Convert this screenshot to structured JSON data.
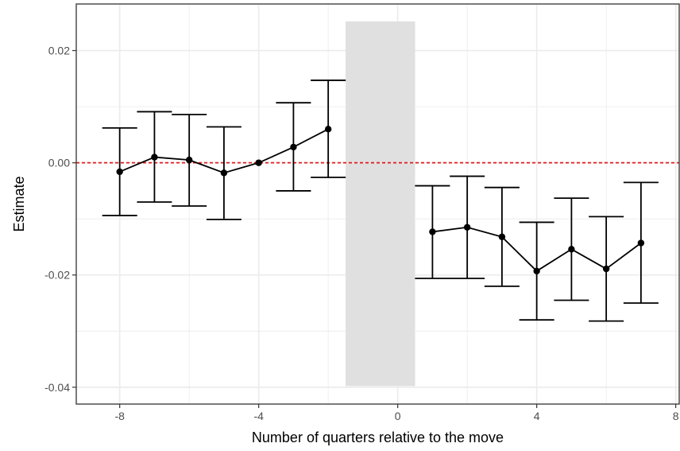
{
  "chart_data": {
    "type": "scatter",
    "xlabel": "Number of quarters relative to the move",
    "ylabel": "Estimate",
    "xlim": [
      -9.25,
      8.1
    ],
    "ylim": [
      -0.043,
      0.0283
    ],
    "x_ticks": [
      -8,
      -4,
      0,
      4,
      8
    ],
    "x_tick_labels": [
      "-8",
      "-4",
      "0",
      "4",
      "8"
    ],
    "y_ticks": [
      -0.04,
      -0.02,
      0.0,
      0.02
    ],
    "y_tick_labels": [
      "-0.04",
      "-0.02",
      "0.00",
      "0.02"
    ],
    "grid": true,
    "reference_line": {
      "y": 0,
      "color": "#e41a1c",
      "style": "dashed"
    },
    "shaded_region": {
      "x": [
        -1.5,
        0.5
      ],
      "y": [
        -0.0398,
        0.0252
      ],
      "color": "#e0e0e0"
    },
    "series": [
      {
        "x": [
          -8,
          -7,
          -6,
          -5,
          -4,
          -3,
          -2
        ],
        "y": [
          -0.0016,
          0.001,
          0.0005,
          -0.0018,
          0.0,
          0.0028,
          0.006
        ],
        "ci_low": [
          -0.0094,
          -0.007,
          -0.0077,
          -0.0101,
          0.0,
          -0.005,
          -0.0026
        ],
        "ci_high": [
          0.0062,
          0.0091,
          0.0086,
          0.0064,
          0.0,
          0.0107,
          0.0147
        ]
      },
      {
        "x": [
          1,
          2,
          3,
          4,
          5,
          6,
          7
        ],
        "y": [
          -0.0123,
          -0.0115,
          -0.0132,
          -0.0193,
          -0.0154,
          -0.0189,
          -0.0143
        ],
        "ci_low": [
          -0.0206,
          -0.0206,
          -0.022,
          -0.028,
          -0.0245,
          -0.0282,
          -0.025
        ],
        "ci_high": [
          -0.0041,
          -0.0024,
          -0.0044,
          -0.0106,
          -0.0063,
          -0.0096,
          -0.0035
        ]
      }
    ],
    "colors": {
      "points": "#000000",
      "grid": "#ebebeb",
      "panel_border": "#333333"
    }
  }
}
